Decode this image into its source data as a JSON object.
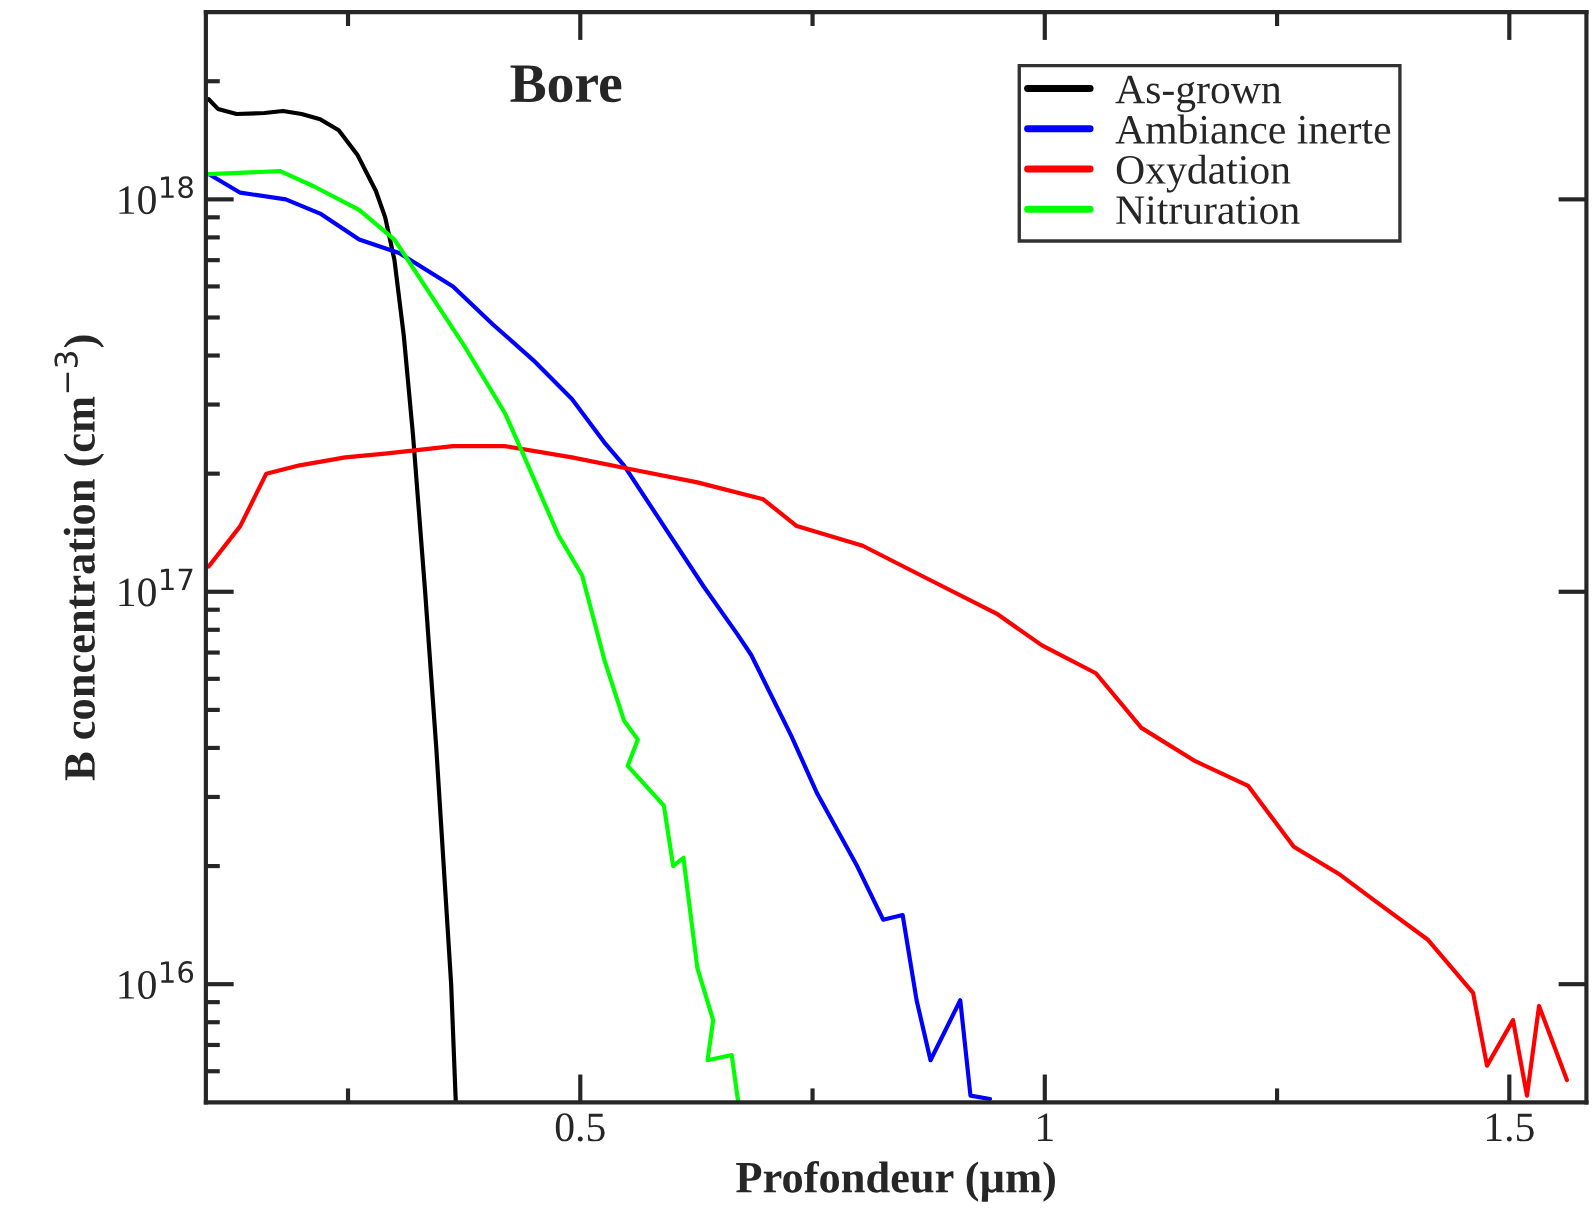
{
  "chart_data": {
    "type": "line",
    "title": "Bore",
    "xlabel": "Profondeur (µm)",
    "ylabel": "B concentration (cm$^{−3}$)",
    "log": "y",
    "xlim": [
      0.097,
      1.583
    ],
    "ylim": [
      5000000000000000.0,
      3e+18
    ],
    "xticks": [
      {
        "value": 0.25,
        "label": null
      },
      0.5,
      {
        "value": 0.75,
        "label": null
      },
      1,
      {
        "value": 1.25,
        "label": null
      },
      1.5
    ],
    "yticks": [
      {
        "value": 6000000000000000.0,
        "label": null
      },
      {
        "value": 7000000000000000.0,
        "label": null
      },
      {
        "value": 8000000000000000.0,
        "label": null
      },
      {
        "value": 9000000000000000.0,
        "label": null
      },
      {
        "value": 1e+16,
        "label": "10$^{16}$"
      },
      {
        "value": 2e+16,
        "label": null
      },
      {
        "value": 3e+16,
        "label": null
      },
      {
        "value": 4e+16,
        "label": null
      },
      {
        "value": 5e+16,
        "label": null
      },
      {
        "value": 6e+16,
        "label": null
      },
      {
        "value": 7e+16,
        "label": null
      },
      {
        "value": 8e+16,
        "label": null
      },
      {
        "value": 9e+16,
        "label": null
      },
      {
        "value": 1e+17,
        "label": "10$^{17}$"
      },
      {
        "value": 2e+17,
        "label": null
      },
      {
        "value": 3e+17,
        "label": null
      },
      {
        "value": 4e+17,
        "label": null
      },
      {
        "value": 5e+17,
        "label": null
      },
      {
        "value": 6e+17,
        "label": null
      },
      {
        "value": 7e+17,
        "label": null
      },
      {
        "value": 8e+17,
        "label": null
      },
      {
        "value": 9e+17,
        "label": null
      },
      {
        "value": 1e+18,
        "label": "10$^{18}$"
      },
      {
        "value": 2e+18,
        "label": null
      }
    ],
    "grid": false,
    "legend": "top right",
    "marker": "none",
    "line_style": "solid",
    "series": [
      {
        "name": "As-grown",
        "color": "#000000",
        "x": [
          0.1,
          0.11,
          0.13,
          0.16,
          0.18,
          0.2,
          0.22,
          0.24,
          0.26,
          0.28,
          0.29,
          0.3,
          0.31,
          0.32,
          0.333,
          0.345,
          0.361,
          0.366
        ],
        "values": [
          1.8e+18,
          1.7e+18,
          1.65e+18,
          1.66e+18,
          1.68e+18,
          1.65e+18,
          1.6e+18,
          1.5e+18,
          1.3e+18,
          1.05e+18,
          9e+17,
          7e+17,
          4.5e+17,
          2.5e+17,
          1e+17,
          4e+16,
          1e+16,
          5000000000000000.0
        ]
      },
      {
        "name": "Ambiance inerte",
        "color": "#0000ff",
        "x": [
          0.1,
          0.134,
          0.183,
          0.22,
          0.262,
          0.305,
          0.363,
          0.406,
          0.449,
          0.491,
          0.526,
          0.547,
          0.59,
          0.633,
          0.669,
          0.684,
          0.727,
          0.755,
          0.798,
          0.826,
          0.847,
          0.862,
          0.877,
          0.909,
          0.92,
          0.941
        ],
        "values": [
          1.16e+18,
          1.04e+18,
          1e+18,
          9.2e+17,
          7.9e+17,
          7.3e+17,
          6e+17,
          4.8e+17,
          3.9e+17,
          3.1e+17,
          2.4e+17,
          2.1e+17,
          1.47e+17,
          1.03e+17,
          7.8e+16,
          6.9e+16,
          4.3e+16,
          3.06e+16,
          2e+16,
          1.46e+16,
          1.5e+16,
          9100000000000000.0,
          6400000000000000.0,
          9100000000000000.0,
          5200000000000000.0,
          5100000000000000.0
        ]
      },
      {
        "name": "Oxydation",
        "color": "#ff0000",
        "x": [
          0.1,
          0.134,
          0.162,
          0.198,
          0.247,
          0.29,
          0.363,
          0.419,
          0.491,
          0.556,
          0.626,
          0.697,
          0.733,
          0.804,
          0.877,
          0.948,
          0.997,
          1.055,
          1.104,
          1.162,
          1.219,
          1.268,
          1.318,
          1.354,
          1.412,
          1.461,
          1.476,
          1.504,
          1.519,
          1.532,
          1.562
        ],
        "values": [
          1.16e+17,
          1.47e+17,
          2e+17,
          2.1e+17,
          2.2e+17,
          2.25e+17,
          2.35e+17,
          2.35e+17,
          2.2e+17,
          2.05e+17,
          1.9e+17,
          1.72e+17,
          1.47e+17,
          1.31e+17,
          1.07e+17,
          8.8e+16,
          7.3e+16,
          6.2e+16,
          4.5e+16,
          3.7e+16,
          3.2e+16,
          2.24e+16,
          1.9e+16,
          1.64e+16,
          1.3e+16,
          9500000000000000.0,
          6200000000000000.0,
          8100000000000000.0,
          5200000000000000.0,
          8800000000000000.0,
          5700000000000000.0
        ]
      },
      {
        "name": "Nitruration",
        "color": "#00ff00",
        "x": [
          0.1,
          0.177,
          0.213,
          0.262,
          0.3,
          0.333,
          0.376,
          0.419,
          0.44,
          0.476,
          0.502,
          0.526,
          0.547,
          0.562,
          0.551,
          0.59,
          0.6,
          0.611,
          0.626,
          0.643,
          0.637,
          0.663,
          0.67
        ],
        "values": [
          1.16e+18,
          1.18e+18,
          1.08e+18,
          9.4e+17,
          7.9e+17,
          6e+17,
          4.2e+17,
          2.85e+17,
          2.2e+17,
          1.4e+17,
          1.1e+17,
          6.7e+16,
          4.7e+16,
          4.2e+16,
          3.6e+16,
          2.85e+16,
          2e+16,
          2.1e+16,
          1.1e+16,
          8100000000000000.0,
          6400000000000000.0,
          6600000000000000.0,
          5000000000000000.0
        ]
      }
    ]
  }
}
